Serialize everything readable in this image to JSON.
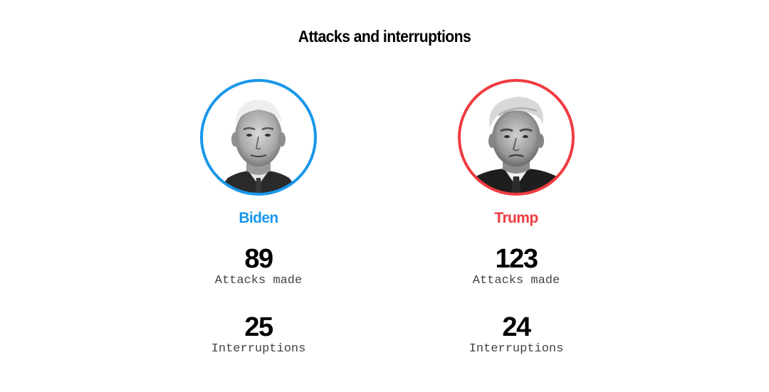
{
  "title": "Attacks and interruptions",
  "candidates": [
    {
      "name": "Biden",
      "color": "#1a97ea",
      "portrait": "biden-portrait",
      "attacks_value": "89",
      "attacks_label": "Attacks made",
      "interruptions_value": "25",
      "interruptions_label": "Interruptions"
    },
    {
      "name": "Trump",
      "color": "#ef3b3f",
      "portrait": "trump-portrait",
      "attacks_value": "123",
      "attacks_label": "Attacks made",
      "interruptions_value": "24",
      "interruptions_label": "Interruptions"
    }
  ]
}
